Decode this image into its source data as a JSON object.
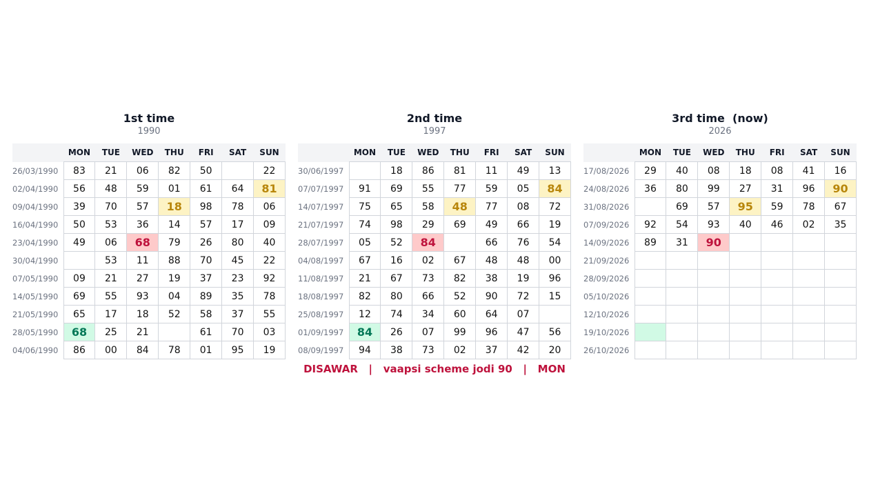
{
  "days": [
    "MON",
    "TUE",
    "WED",
    "THU",
    "FRI",
    "SAT",
    "SUN"
  ],
  "panels": [
    {
      "title": "1st time",
      "subtitle": "1990",
      "rows": [
        {
          "date": "26/03/1990",
          "cells": [
            "83",
            "21",
            "06",
            "82",
            "50",
            null,
            "22"
          ]
        },
        {
          "date": "02/04/1990",
          "cells": [
            "56",
            "48",
            "59",
            "01",
            "61",
            "64",
            "81"
          ]
        },
        {
          "date": "09/04/1990",
          "cells": [
            "39",
            "70",
            "57",
            "18",
            "98",
            "78",
            "06"
          ]
        },
        {
          "date": "16/04/1990",
          "cells": [
            "50",
            "53",
            "36",
            "14",
            "57",
            "17",
            "09"
          ]
        },
        {
          "date": "23/04/1990",
          "cells": [
            "49",
            "06",
            "68",
            "79",
            "26",
            "80",
            "40"
          ]
        },
        {
          "date": "30/04/1990",
          "cells": [
            null,
            "53",
            "11",
            "88",
            "70",
            "45",
            "22"
          ]
        },
        {
          "date": "07/05/1990",
          "cells": [
            "09",
            "21",
            "27",
            "19",
            "37",
            "23",
            "92"
          ]
        },
        {
          "date": "14/05/1990",
          "cells": [
            "69",
            "55",
            "93",
            "04",
            "89",
            "35",
            "78"
          ]
        },
        {
          "date": "21/05/1990",
          "cells": [
            "65",
            "17",
            "18",
            "52",
            "58",
            "37",
            "55"
          ]
        },
        {
          "date": "28/05/1990",
          "cells": [
            "68",
            "25",
            "21",
            null,
            "61",
            "70",
            "03"
          ]
        },
        {
          "date": "04/06/1990",
          "cells": [
            "86",
            "00",
            "84",
            "78",
            "01",
            "95",
            "19"
          ]
        }
      ],
      "highlights": [
        {
          "row": 1,
          "col": 6,
          "fill": "#fdf3c4",
          "text": "#b8860b"
        },
        {
          "row": 2,
          "col": 3,
          "fill": "#fdf3c4",
          "text": "#b8860b"
        },
        {
          "row": 4,
          "col": 2,
          "fill": "#fecaca",
          "text": "#be123c"
        },
        {
          "row": 9,
          "col": 0,
          "fill": "#d1fae5",
          "text": "#047857"
        }
      ]
    },
    {
      "title": "2nd time",
      "subtitle": "1997",
      "rows": [
        {
          "date": "30/06/1997",
          "cells": [
            null,
            "18",
            "86",
            "81",
            "11",
            "49",
            "13"
          ]
        },
        {
          "date": "07/07/1997",
          "cells": [
            "91",
            "69",
            "55",
            "77",
            "59",
            "05",
            "84"
          ]
        },
        {
          "date": "14/07/1997",
          "cells": [
            "75",
            "65",
            "58",
            "48",
            "77",
            "08",
            "72"
          ]
        },
        {
          "date": "21/07/1997",
          "cells": [
            "74",
            "98",
            "29",
            "69",
            "49",
            "66",
            "19"
          ]
        },
        {
          "date": "28/07/1997",
          "cells": [
            "05",
            "52",
            "84",
            null,
            "66",
            "76",
            "54"
          ]
        },
        {
          "date": "04/08/1997",
          "cells": [
            "67",
            "16",
            "02",
            "67",
            "48",
            "48",
            "00"
          ]
        },
        {
          "date": "11/08/1997",
          "cells": [
            "21",
            "67",
            "73",
            "82",
            "38",
            "19",
            "96"
          ]
        },
        {
          "date": "18/08/1997",
          "cells": [
            "82",
            "80",
            "66",
            "52",
            "90",
            "72",
            "15"
          ]
        },
        {
          "date": "25/08/1997",
          "cells": [
            "12",
            "74",
            "34",
            "60",
            "64",
            "07",
            null
          ]
        },
        {
          "date": "01/09/1997",
          "cells": [
            "84",
            "26",
            "07",
            "99",
            "96",
            "47",
            "56"
          ]
        },
        {
          "date": "08/09/1997",
          "cells": [
            "94",
            "38",
            "73",
            "02",
            "37",
            "42",
            "20"
          ]
        }
      ],
      "highlights": [
        {
          "row": 1,
          "col": 6,
          "fill": "#fdf3c4",
          "text": "#b8860b"
        },
        {
          "row": 2,
          "col": 3,
          "fill": "#fdf3c4",
          "text": "#b8860b"
        },
        {
          "row": 4,
          "col": 2,
          "fill": "#fecaca",
          "text": "#be123c"
        },
        {
          "row": 9,
          "col": 0,
          "fill": "#d1fae5",
          "text": "#047857"
        }
      ]
    },
    {
      "title": "3rd time  (now)",
      "subtitle": "2026",
      "rows": [
        {
          "date": "17/08/2026",
          "cells": [
            "29",
            "40",
            "08",
            "18",
            "08",
            "41",
            "16"
          ]
        },
        {
          "date": "24/08/2026",
          "cells": [
            "36",
            "80",
            "99",
            "27",
            "31",
            "96",
            "90"
          ]
        },
        {
          "date": "31/08/2026",
          "cells": [
            null,
            "69",
            "57",
            "95",
            "59",
            "78",
            "67"
          ]
        },
        {
          "date": "07/09/2026",
          "cells": [
            "92",
            "54",
            "93",
            "40",
            "46",
            "02",
            "35"
          ]
        },
        {
          "date": "14/09/2026",
          "cells": [
            "89",
            "31",
            "90",
            null,
            null,
            null,
            null
          ]
        },
        {
          "date": "21/09/2026",
          "cells": [
            null,
            null,
            null,
            null,
            null,
            null,
            null
          ]
        },
        {
          "date": "28/09/2026",
          "cells": [
            null,
            null,
            null,
            null,
            null,
            null,
            null
          ]
        },
        {
          "date": "05/10/2026",
          "cells": [
            null,
            null,
            null,
            null,
            null,
            null,
            null
          ]
        },
        {
          "date": "12/10/2026",
          "cells": [
            null,
            null,
            null,
            null,
            null,
            null,
            null
          ]
        },
        {
          "date": "19/10/2026",
          "cells": [
            null,
            null,
            null,
            null,
            null,
            null,
            null
          ]
        },
        {
          "date": "26/10/2026",
          "cells": [
            null,
            null,
            null,
            null,
            null,
            null,
            null
          ]
        }
      ],
      "highlights": [
        {
          "row": 1,
          "col": 6,
          "fill": "#fdf3c4",
          "text": "#b8860b"
        },
        {
          "row": 2,
          "col": 3,
          "fill": "#fdf3c4",
          "text": "#b8860b"
        },
        {
          "row": 4,
          "col": 2,
          "fill": "#fecaca",
          "text": "#be123c"
        },
        {
          "row": 9,
          "col": 0,
          "fill": "#d1fae5",
          "text": "#047857"
        }
      ]
    }
  ],
  "footer": "DISAWAR   |   vaapsi scheme jodi 90   |   MON"
}
